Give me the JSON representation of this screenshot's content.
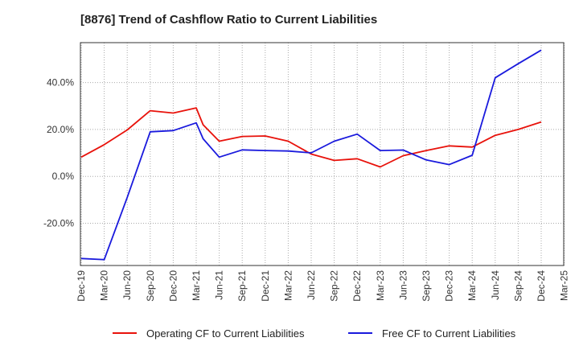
{
  "chart_data": {
    "type": "line",
    "title": "[8876]  Trend of Cashflow Ratio to Current Liabilities",
    "xlabel": "",
    "ylabel": "",
    "x_ticks": [
      "Dec-19",
      "Mar-20",
      "Jun-20",
      "Sep-20",
      "Dec-20",
      "Mar-21",
      "Jun-21",
      "Sep-21",
      "Dec-21",
      "Mar-22",
      "Jun-22",
      "Sep-22",
      "Dec-22",
      "Mar-23",
      "Jun-23",
      "Sep-23",
      "Dec-23",
      "Mar-24",
      "Jun-24",
      "Sep-24",
      "Dec-24",
      "Mar-25"
    ],
    "y_ticks": [
      {
        "value": 40,
        "label": "40.0%"
      },
      {
        "value": 20,
        "label": "20.0%"
      },
      {
        "value": 0,
        "label": "0.0%"
      },
      {
        "value": -20,
        "label": "-20.0%"
      }
    ],
    "ylim": [
      -38,
      57
    ],
    "grid": true,
    "legend_position": "bottom",
    "series": [
      {
        "name": "Operating CF to Current Liabilities",
        "color": "#e8120b",
        "points": [
          {
            "x": 0,
            "y": 8.2
          },
          {
            "x": 1,
            "y": 13.5
          },
          {
            "x": 2,
            "y": 19.8
          },
          {
            "x": 3,
            "y": 28.0
          },
          {
            "x": 4,
            "y": 27.0
          },
          {
            "x": 5,
            "y": 29.2
          },
          {
            "x": 5.3,
            "y": 22.0
          },
          {
            "x": 6,
            "y": 15.0
          },
          {
            "x": 7,
            "y": 17.0
          },
          {
            "x": 8,
            "y": 17.2
          },
          {
            "x": 9,
            "y": 15.0
          },
          {
            "x": 10,
            "y": 9.5
          },
          {
            "x": 11,
            "y": 6.8
          },
          {
            "x": 12,
            "y": 7.5
          },
          {
            "x": 13,
            "y": 4.0
          },
          {
            "x": 14,
            "y": 8.8
          },
          {
            "x": 15,
            "y": 11.0
          },
          {
            "x": 16,
            "y": 13.0
          },
          {
            "x": 17,
            "y": 12.5
          },
          {
            "x": 18,
            "y": 17.5
          },
          {
            "x": 19,
            "y": 20.0
          },
          {
            "x": 20,
            "y": 23.2
          }
        ]
      },
      {
        "name": "Free CF to Current Liabilities",
        "color": "#1a1add",
        "points": [
          {
            "x": 0,
            "y": -35.0
          },
          {
            "x": 1,
            "y": -35.5
          },
          {
            "x": 2,
            "y": -9.0
          },
          {
            "x": 3,
            "y": 19.0
          },
          {
            "x": 4,
            "y": 19.5
          },
          {
            "x": 5,
            "y": 22.8
          },
          {
            "x": 5.3,
            "y": 16.0
          },
          {
            "x": 6,
            "y": 8.2
          },
          {
            "x": 7,
            "y": 11.3
          },
          {
            "x": 8,
            "y": 11.0
          },
          {
            "x": 9,
            "y": 10.8
          },
          {
            "x": 10,
            "y": 10.0
          },
          {
            "x": 11,
            "y": 15.0
          },
          {
            "x": 12,
            "y": 18.0
          },
          {
            "x": 13,
            "y": 11.0
          },
          {
            "x": 14,
            "y": 11.2
          },
          {
            "x": 15,
            "y": 7.0
          },
          {
            "x": 16,
            "y": 5.0
          },
          {
            "x": 17,
            "y": 9.0
          },
          {
            "x": 18,
            "y": 42.0
          },
          {
            "x": 19,
            "y": 48.0
          },
          {
            "x": 20,
            "y": 53.8
          }
        ]
      }
    ]
  }
}
